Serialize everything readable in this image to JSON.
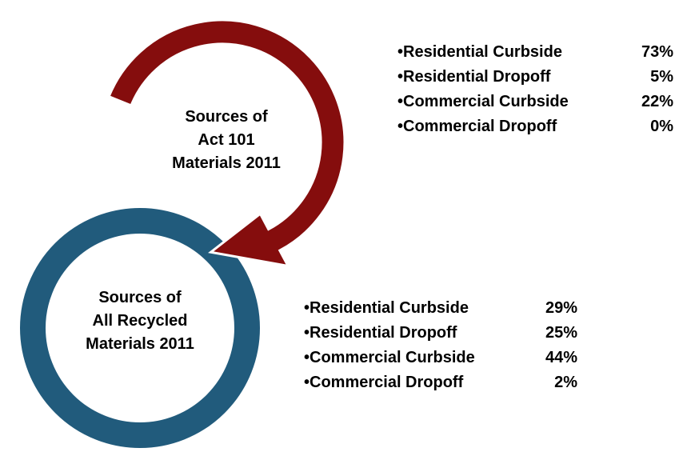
{
  "groups": [
    {
      "title": [
        "Sources of",
        "Act 101",
        "Materials 2011"
      ],
      "items": [
        {
          "label": "•Residential Curbside",
          "value": "73%"
        },
        {
          "label": "•Residential Dropoff",
          "value": "5%"
        },
        {
          "label": "•Commercial Curbside",
          "value": "22%"
        },
        {
          "label": "•Commercial Dropoff",
          "value": "0%"
        }
      ]
    },
    {
      "title": [
        "Sources of",
        "All Recycled",
        "Materials 2011"
      ],
      "items": [
        {
          "label": "•Residential Curbside",
          "value": "29%"
        },
        {
          "label": "•Residential Dropoff",
          "value": "25%"
        },
        {
          "label": "•Commercial Curbside",
          "value": "44%"
        },
        {
          "label": "•Commercial Dropoff",
          "value": "2%"
        }
      ]
    }
  ]
}
